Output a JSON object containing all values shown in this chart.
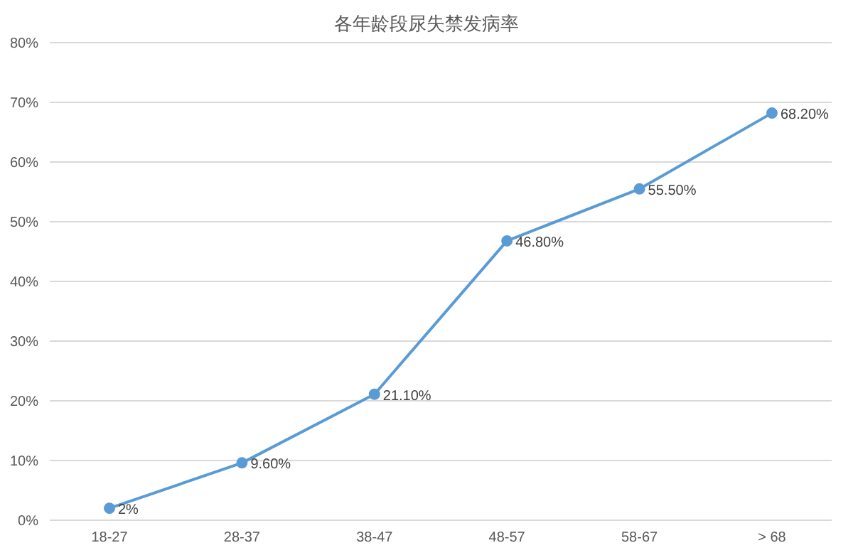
{
  "chart_data": {
    "type": "line",
    "title": "各年龄段尿失禁发病率",
    "categories": [
      "18-27",
      "28-37",
      "38-47",
      "48-57",
      "58-67",
      "> 68"
    ],
    "series": [
      {
        "color": "#5b9bd5",
        "values": [
          2,
          9.6,
          21.1,
          46.8,
          55.5,
          68.2
        ],
        "value_labels": [
          "2%",
          "9.60%",
          "21.10%",
          "46.80%",
          "55.50%",
          "68.20%"
        ]
      }
    ],
    "ylim": [
      0,
      80
    ],
    "yticks": [
      {
        "value": 0,
        "label": "0%"
      },
      {
        "value": 10,
        "label": "10%"
      },
      {
        "value": 20,
        "label": "20%"
      },
      {
        "value": 30,
        "label": "30%"
      },
      {
        "value": 40,
        "label": "40%"
      },
      {
        "value": 50,
        "label": "50%"
      },
      {
        "value": 60,
        "label": "60%"
      },
      {
        "value": 70,
        "label": "70%"
      },
      {
        "value": 80,
        "label": "80%"
      }
    ],
    "grid": "y",
    "marker": "circle",
    "line_style": "solid",
    "legend": false
  }
}
